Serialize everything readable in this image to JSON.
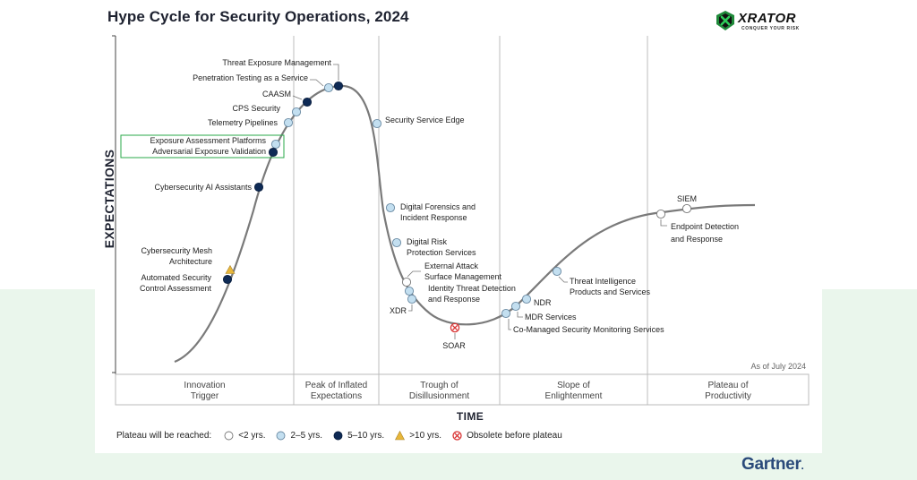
{
  "title": "Hype Cycle for Security Operations, 2024",
  "logo": {
    "text": "XRATOR",
    "tagline": "CONQUER YOUR RISK",
    "icon": "x-shield-logo-icon"
  },
  "publisher": "Gartner",
  "as_of": "As of July 2024",
  "colors": {
    "lt2": "#ffffff",
    "y2to5": "#c3dff0",
    "y5to10": "#0e2a55",
    "gt10": "#e8b73a",
    "obsolete": "#d93434",
    "curve": "#7a7a7a",
    "highlight_box": "#2aa84a",
    "band": "#eaf6ec"
  },
  "chart_data": {
    "type": "hype-cycle",
    "title": "Hype Cycle for Security Operations, 2024",
    "xlabel": "TIME",
    "ylabel": "EXPECTATIONS",
    "phases": [
      {
        "line1": "Innovation",
        "line2": "Trigger"
      },
      {
        "line1": "Peak of Inflated",
        "line2": "Expectations"
      },
      {
        "line1": "Trough of",
        "line2": "Disillusionment"
      },
      {
        "line1": "Slope of",
        "line2": "Enlightenment"
      },
      {
        "line1": "Plateau of",
        "line2": "Productivity"
      }
    ],
    "legend": {
      "label": "Plateau will be reached:",
      "items": [
        {
          "key": "lt2",
          "label": "<2 yrs."
        },
        {
          "key": "y2to5",
          "label": "2–5 yrs."
        },
        {
          "key": "y5to10",
          "label": "5–10 yrs."
        },
        {
          "key": "gt10",
          "label": ">10 yrs."
        },
        {
          "key": "obsolete",
          "label": "Obsolete before plateau"
        }
      ]
    },
    "technologies": [
      {
        "label": "Threat Exposure Management",
        "type": "y5to10"
      },
      {
        "label": "Penetration Testing as a Service",
        "type": "y2to5"
      },
      {
        "label": "CAASM",
        "type": "y5to10"
      },
      {
        "label": "CPS Security",
        "type": "y2to5"
      },
      {
        "label": "Telemetry Pipelines",
        "type": "y2to5"
      },
      {
        "label": "Exposure Assessment Platforms",
        "type": "y2to5",
        "highlight": true
      },
      {
        "label": "Adversarial Exposure Validation",
        "type": "y5to10",
        "highlight": true
      },
      {
        "label": "Cybersecurity AI Assistants",
        "type": "y5to10"
      },
      {
        "label": "Cybersecurity Mesh Architecture",
        "lines": [
          "Cybersecurity Mesh",
          "Architecture"
        ],
        "type": "gt10"
      },
      {
        "label": "Automated Security Control Assessment",
        "lines": [
          "Automated Security",
          "Control Assessment"
        ],
        "type": "y5to10"
      },
      {
        "label": "Security Service Edge",
        "type": "y2to5"
      },
      {
        "label": "Digital Forensics and Incident Response",
        "lines": [
          "Digital Forensics and",
          "Incident Response"
        ],
        "type": "y2to5"
      },
      {
        "label": "Digital Risk Protection Services",
        "lines": [
          "Digital Risk",
          "Protection Services"
        ],
        "type": "y2to5"
      },
      {
        "label": "External Attack Surface Management",
        "lines": [
          "External Attack",
          "Surface Management"
        ],
        "type": "lt2"
      },
      {
        "label": "Identity Threat Detection and Response",
        "lines": [
          "Identity Threat Detection",
          "and Response"
        ],
        "type": "y2to5"
      },
      {
        "label": "XDR",
        "type": "y2to5"
      },
      {
        "label": "SOAR",
        "type": "obsolete"
      },
      {
        "label": "Co-Managed Security Monitoring Services",
        "type": "y2to5"
      },
      {
        "label": "MDR Services",
        "type": "y2to5"
      },
      {
        "label": "NDR",
        "type": "y2to5"
      },
      {
        "label": "Threat Intelligence Products and Services",
        "lines": [
          "Threat Intelligence",
          "Products and Services"
        ],
        "type": "y2to5"
      },
      {
        "label": "Endpoint Detection and Response",
        "lines": [
          "Endpoint Detection",
          "and Response"
        ],
        "type": "lt2"
      },
      {
        "label": "SIEM",
        "type": "lt2"
      }
    ]
  }
}
